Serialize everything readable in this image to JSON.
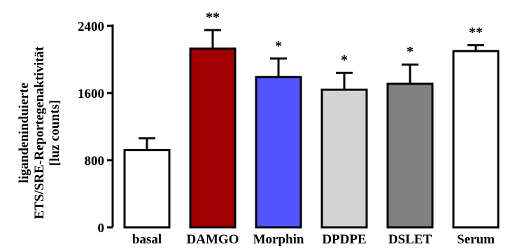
{
  "chart_data": {
    "type": "bar",
    "categories": [
      "basal",
      "DAMGO",
      "Morphin",
      "DPDPE",
      "DSLET",
      "Serum"
    ],
    "values": [
      920,
      2130,
      1790,
      1640,
      1710,
      2100
    ],
    "error_upper": [
      1060,
      2350,
      2010,
      1840,
      1940,
      2170
    ],
    "significance": [
      "",
      "**",
      "*",
      "*",
      "*",
      "**"
    ],
    "colors": [
      "#ffffff",
      "#a00000",
      "#5555ff",
      "#d3d3d3",
      "#808080",
      "#ffffff"
    ],
    "ylabel_lines": [
      "ligandeninduierte",
      "ETS/SRE-Reportegenaktivität",
      "[luz counts]"
    ],
    "yticks": [
      0,
      800,
      1600,
      2400
    ],
    "ylim": [
      0,
      2400
    ],
    "grid": false,
    "legend": "none"
  }
}
